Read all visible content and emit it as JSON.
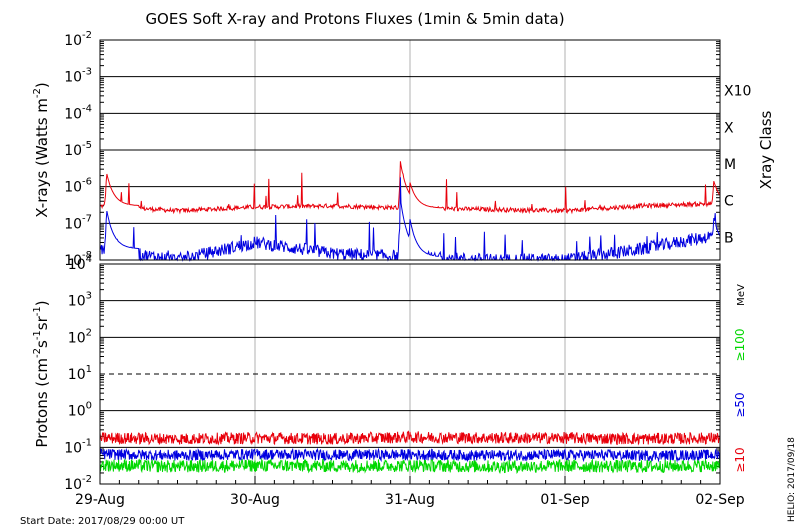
{
  "chart_data": [
    {
      "type": "line",
      "title": "GOES Soft X-ray and Protons Fluxes   (1min & 5min data)",
      "ylabel": "X-rays (Watts m",
      "ylabel_sup": "-2",
      "ylabel_close": ")",
      "yscale": "log",
      "ylim": [
        1e-08,
        0.01
      ],
      "y_ticks": [
        {
          "base": "10",
          "exp": "-2",
          "value": 0.01
        },
        {
          "base": "10",
          "exp": "-3",
          "value": 0.001
        },
        {
          "base": "10",
          "exp": "-4",
          "value": 0.0001
        },
        {
          "base": "10",
          "exp": "-5",
          "value": 1e-05
        },
        {
          "base": "10",
          "exp": "-6",
          "value": 1e-06
        },
        {
          "base": "10",
          "exp": "-7",
          "value": 1e-07
        },
        {
          "base": "10",
          "exp": "-8",
          "value": 1e-08
        }
      ],
      "right_axis_label": "Xray Class",
      "xray_classes": [
        {
          "label": "X10",
          "value": 0.001
        },
        {
          "label": "X",
          "value": 0.0001
        },
        {
          "label": "M",
          "value": 1e-05
        },
        {
          "label": "C",
          "value": 1e-06
        },
        {
          "label": "B",
          "value": 1e-07
        }
      ],
      "x": [
        "2017-08-29",
        "2017-08-29 12:00",
        "2017-08-30",
        "2017-08-30 12:00",
        "2017-08-31",
        "2017-08-31 12:00",
        "2017-09-01",
        "2017-09-01 12:00",
        "2017-09-02"
      ],
      "series": [
        {
          "color": "#e8000b",
          "values": [
            3e-07,
            2.2e-07,
            2.8e-07,
            3e-07,
            2.6e-07,
            2.4e-07,
            2.2e-07,
            3e-07,
            3.5e-07
          ]
        },
        {
          "color": "#0000e0",
          "values": [
            2e-08,
            1e-08,
            3e-08,
            1.5e-08,
            1.2e-08,
            1e-08,
            1e-08,
            2e-08,
            5e-08
          ]
        }
      ],
      "peaks": [
        {
          "x": "2017-08-29 01:00",
          "y": 2.5e-06
        },
        {
          "x": "2017-08-30 22:30",
          "y": 5e-06
        },
        {
          "x": "2017-08-31 00:00",
          "y": 1.3e-06
        },
        {
          "x": "2017-09-01 23:00",
          "y": 1.5e-06
        }
      ],
      "grid": true
    },
    {
      "type": "line",
      "ylabel": "Protons (cm",
      "ylabel_sup1": "-2",
      "ylabel_mid": "s",
      "ylabel_sup2": "-1",
      "ylabel_mid2": "sr",
      "ylabel_sup3": "-1",
      "ylabel_close": ")",
      "yscale": "log",
      "ylim": [
        0.01,
        10000
      ],
      "y_ticks": [
        {
          "base": "10",
          "exp": "4",
          "value": 10000.0
        },
        {
          "base": "10",
          "exp": "3",
          "value": 1000.0
        },
        {
          "base": "10",
          "exp": "2",
          "value": 100.0
        },
        {
          "base": "10",
          "exp": "1",
          "value": 10.0
        },
        {
          "base": "10",
          "exp": "0",
          "value": 1.0
        },
        {
          "base": "10",
          "exp": "-1",
          "value": 0.1
        },
        {
          "base": "10",
          "exp": "-2",
          "value": 0.01
        }
      ],
      "unit_label": "MeV",
      "threshold_line": 10,
      "x": [
        "2017-08-29",
        "2017-08-29 12:00",
        "2017-08-30",
        "2017-08-30 12:00",
        "2017-08-31",
        "2017-08-31 12:00",
        "2017-09-01",
        "2017-09-01 12:00",
        "2017-09-02"
      ],
      "series": [
        {
          "name": "≥10",
          "color": "#e8000b",
          "values": [
            0.18,
            0.17,
            0.18,
            0.17,
            0.19,
            0.18,
            0.18,
            0.17,
            0.18
          ]
        },
        {
          "name": "≥50",
          "color": "#0000e0",
          "values": [
            0.065,
            0.06,
            0.065,
            0.062,
            0.063,
            0.06,
            0.062,
            0.06,
            0.062
          ]
        },
        {
          "name": "≥100",
          "color": "#00d800",
          "values": [
            0.033,
            0.03,
            0.032,
            0.031,
            0.032,
            0.03,
            0.031,
            0.03,
            0.032
          ]
        }
      ],
      "grid": true
    }
  ],
  "x_tick_labels": [
    "29-Aug",
    "30-Aug",
    "31-Aug",
    "01-Sep",
    "02-Sep"
  ],
  "footer": {
    "start_date": "Start Date: 2017/08/29 00:00 UT",
    "credit": "HELIO: 2017/09/18"
  }
}
